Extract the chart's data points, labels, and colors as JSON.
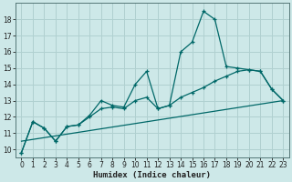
{
  "xlabel": "Humidex (Indice chaleur)",
  "bg_color": "#cde8e8",
  "grid_color": "#b0d0d0",
  "line_color": "#006868",
  "xlim": [
    -0.5,
    23.5
  ],
  "ylim": [
    9.5,
    19.0
  ],
  "xticks": [
    0,
    1,
    2,
    3,
    4,
    5,
    6,
    7,
    8,
    9,
    10,
    11,
    12,
    13,
    14,
    15,
    16,
    17,
    18,
    19,
    20,
    21,
    22,
    23
  ],
  "yticks": [
    10,
    11,
    12,
    13,
    14,
    15,
    16,
    17,
    18
  ],
  "line1_x": [
    0,
    1,
    2,
    3,
    4,
    5,
    6,
    7,
    8,
    9,
    10,
    11,
    12,
    13,
    14,
    15,
    16,
    17,
    18,
    19,
    20,
    21,
    22,
    23
  ],
  "line1_y": [
    9.8,
    11.7,
    11.3,
    10.5,
    11.4,
    11.5,
    12.1,
    13.0,
    12.7,
    12.6,
    14.0,
    14.8,
    12.5,
    12.7,
    16.0,
    16.6,
    18.5,
    18.0,
    15.1,
    15.0,
    14.9,
    14.8,
    13.7,
    13.0
  ],
  "line2_x": [
    0,
    1,
    2,
    3,
    4,
    5,
    6,
    7,
    8,
    9,
    10,
    11,
    12,
    13,
    14,
    15,
    16,
    17,
    18,
    19,
    20,
    21,
    22,
    23
  ],
  "line2_y": [
    9.8,
    11.7,
    11.3,
    10.5,
    11.4,
    11.5,
    12.0,
    12.5,
    12.6,
    12.5,
    13.0,
    13.2,
    12.5,
    12.7,
    13.2,
    13.5,
    13.8,
    14.2,
    14.5,
    14.8,
    14.9,
    14.8,
    13.7,
    13.0
  ],
  "line3_x": [
    0,
    23
  ],
  "line3_y": [
    10.5,
    13.0
  ],
  "tick_fontsize": 5.5,
  "xlabel_fontsize": 6.5
}
